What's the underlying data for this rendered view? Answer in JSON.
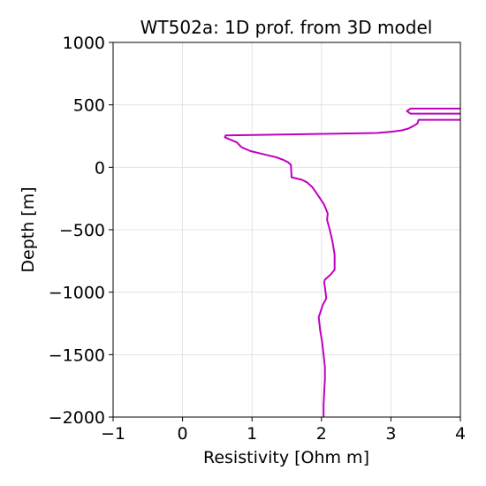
{
  "chart_data": {
    "type": "line",
    "title": "WT502a: 1D prof. from 3D model",
    "xlabel": "Resistivity [Ohm m]",
    "ylabel": "Depth [m]",
    "xlim": [
      -1,
      4
    ],
    "ylim": [
      -2000,
      1000
    ],
    "xticks": [
      -1,
      0,
      1,
      2,
      3,
      4
    ],
    "yticks": [
      1000,
      500,
      0,
      -500,
      -1000,
      -1500,
      -2000
    ],
    "xtick_labels": [
      "−1",
      "0",
      "1",
      "2",
      "3",
      "4"
    ],
    "ytick_labels": [
      "1000",
      "500",
      "0",
      "−500",
      "−1000",
      "−1500",
      "−2000"
    ],
    "grid": true,
    "series": [
      {
        "color": "#c000c0",
        "x": [
          4.0,
          3.4,
          3.38,
          3.32,
          3.25,
          3.15,
          3.0,
          2.8,
          0.62,
          0.61,
          0.78,
          0.85,
          0.98,
          1.2,
          1.35,
          1.45,
          1.52,
          1.56,
          1.57,
          1.72,
          1.79,
          1.87,
          1.92,
          1.97,
          2.04,
          2.09,
          2.08,
          2.12,
          2.16,
          2.19,
          2.19,
          2.13,
          2.05,
          2.04,
          2.05,
          2.07,
          2.02,
          1.96,
          1.98,
          2.01,
          2.03,
          2.05,
          2.05,
          2.04,
          2.03,
          2.03,
          2.03
        ],
        "y": [
          380,
          380,
          350,
          330,
          310,
          295,
          285,
          275,
          255,
          240,
          200,
          160,
          130,
          100,
          80,
          60,
          40,
          20,
          -80,
          -100,
          -120,
          -160,
          -200,
          -240,
          -300,
          -370,
          -420,
          -500,
          -600,
          -700,
          -820,
          -860,
          -900,
          -920,
          -960,
          -1050,
          -1100,
          -1200,
          -1300,
          -1400,
          -1500,
          -1600,
          -1700,
          -1800,
          -1900,
          -1950,
          -2000
        ]
      },
      {
        "color": "#c000c0",
        "x": [
          4.0,
          3.28,
          3.23,
          3.28,
          4.0
        ],
        "y": [
          470,
          470,
          450,
          430,
          430
        ]
      }
    ]
  }
}
